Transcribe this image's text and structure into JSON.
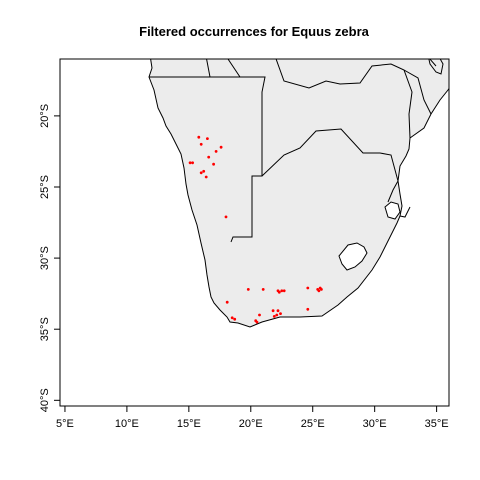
{
  "chart_data": {
    "type": "scatter",
    "title": "Filtered occurrences for Equus zebra",
    "xlabel": "",
    "ylabel": "",
    "xlim": [
      4.6,
      36.0
    ],
    "ylim": [
      -40.4,
      -16.0
    ],
    "x_ticks": [
      {
        "value": 5,
        "label": "5°E"
      },
      {
        "value": 10,
        "label": "10°E"
      },
      {
        "value": 15,
        "label": "15°E"
      },
      {
        "value": 20,
        "label": "20°E"
      },
      {
        "value": 25,
        "label": "25°E"
      },
      {
        "value": 30,
        "label": "30°E"
      },
      {
        "value": 35,
        "label": "35°E"
      }
    ],
    "y_ticks": [
      {
        "value": -20,
        "label": "20°S"
      },
      {
        "value": -25,
        "label": "25°S"
      },
      {
        "value": -30,
        "label": "30°S"
      },
      {
        "value": -35,
        "label": "35°S"
      },
      {
        "value": -40,
        "label": "40°S"
      }
    ],
    "point_color": "#ff0000",
    "land_color": "#ececec",
    "points": [
      {
        "lon": 15.8,
        "lat": -21.5
      },
      {
        "lon": 16.5,
        "lat": -21.6
      },
      {
        "lon": 16.0,
        "lat": -22.0
      },
      {
        "lon": 17.6,
        "lat": -22.2
      },
      {
        "lon": 17.2,
        "lat": -22.5
      },
      {
        "lon": 16.6,
        "lat": -22.9
      },
      {
        "lon": 15.1,
        "lat": -23.3
      },
      {
        "lon": 15.3,
        "lat": -23.3
      },
      {
        "lon": 17.0,
        "lat": -23.4
      },
      {
        "lon": 16.2,
        "lat": -23.9
      },
      {
        "lon": 16.0,
        "lat": -24.0
      },
      {
        "lon": 16.4,
        "lat": -24.3
      },
      {
        "lon": 18.0,
        "lat": -27.1
      },
      {
        "lon": 19.8,
        "lat": -32.2
      },
      {
        "lon": 21.0,
        "lat": -32.2
      },
      {
        "lon": 22.2,
        "lat": -32.3
      },
      {
        "lon": 22.5,
        "lat": -32.3
      },
      {
        "lon": 22.3,
        "lat": -32.4
      },
      {
        "lon": 22.7,
        "lat": -32.3
      },
      {
        "lon": 24.6,
        "lat": -32.1
      },
      {
        "lon": 25.4,
        "lat": -32.2
      },
      {
        "lon": 25.6,
        "lat": -32.1
      },
      {
        "lon": 25.7,
        "lat": -32.2
      },
      {
        "lon": 25.5,
        "lat": -32.3
      },
      {
        "lon": 18.1,
        "lat": -33.1
      },
      {
        "lon": 21.8,
        "lat": -33.7
      },
      {
        "lon": 22.2,
        "lat": -33.7
      },
      {
        "lon": 24.6,
        "lat": -33.6
      },
      {
        "lon": 22.4,
        "lat": -33.9
      },
      {
        "lon": 20.7,
        "lat": -34.0
      },
      {
        "lon": 21.9,
        "lat": -34.1
      },
      {
        "lon": 22.1,
        "lat": -34.0
      },
      {
        "lon": 18.5,
        "lat": -34.2
      },
      {
        "lon": 18.7,
        "lat": -34.3
      },
      {
        "lon": 20.4,
        "lat": -34.4
      },
      {
        "lon": 20.5,
        "lat": -34.5
      }
    ]
  }
}
